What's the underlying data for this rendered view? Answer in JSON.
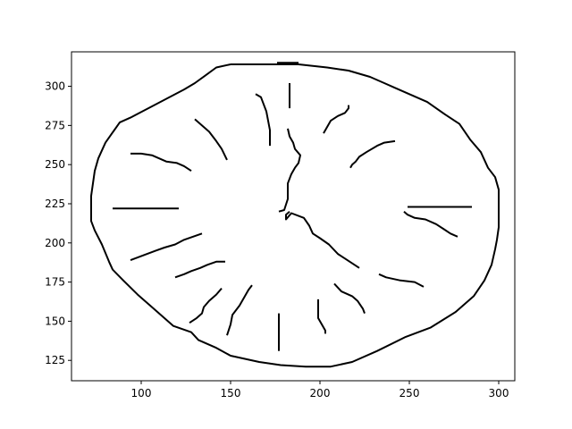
{
  "chart_data": {
    "type": "line",
    "title": "",
    "xlabel": "",
    "ylabel": "",
    "xlim": [
      61,
      309
    ],
    "ylim": [
      112,
      322
    ],
    "grid": false,
    "legend": "none",
    "line_color": "#000000",
    "x_ticks": [
      100,
      150,
      200,
      250,
      300
    ],
    "y_ticks": [
      125,
      150,
      175,
      200,
      225,
      250,
      275,
      300
    ],
    "strokes": [
      {
        "name": "clock-outline",
        "points": [
          [
            150,
            314
          ],
          [
            142,
            312
          ],
          [
            136,
            307
          ],
          [
            130,
            302
          ],
          [
            124,
            298
          ],
          [
            114,
            292
          ],
          [
            104,
            286
          ],
          [
            94,
            280
          ],
          [
            88,
            277
          ],
          [
            80,
            264
          ],
          [
            76,
            254
          ],
          [
            74,
            246
          ],
          [
            73,
            238
          ],
          [
            72,
            230
          ],
          [
            72,
            222
          ],
          [
            72,
            214
          ],
          [
            74,
            208
          ],
          [
            78,
            199
          ],
          [
            82,
            188
          ],
          [
            84,
            183
          ],
          [
            90,
            176
          ],
          [
            98,
            167
          ],
          [
            106,
            159
          ],
          [
            118,
            147
          ],
          [
            128,
            143
          ],
          [
            132,
            138
          ],
          [
            142,
            133
          ],
          [
            150,
            128
          ],
          [
            166,
            124
          ],
          [
            178,
            122
          ],
          [
            192,
            121
          ],
          [
            198,
            121
          ],
          [
            206,
            121
          ],
          [
            218,
            124
          ],
          [
            232,
            131
          ],
          [
            248,
            140
          ],
          [
            262,
            146
          ],
          [
            276,
            156
          ],
          [
            286,
            166
          ],
          [
            292,
            176
          ],
          [
            296,
            186
          ],
          [
            298,
            196
          ],
          [
            299,
            202
          ],
          [
            300,
            210
          ],
          [
            300,
            220
          ],
          [
            300,
            234
          ],
          [
            298,
            242
          ],
          [
            294,
            248
          ],
          [
            290,
            258
          ],
          [
            284,
            266
          ],
          [
            278,
            276
          ],
          [
            270,
            282
          ],
          [
            260,
            290
          ],
          [
            252,
            294
          ],
          [
            242,
            299
          ],
          [
            236,
            302
          ],
          [
            228,
            306
          ],
          [
            216,
            310
          ],
          [
            204,
            312
          ],
          [
            188,
            314
          ],
          [
            172,
            314
          ],
          [
            160,
            314
          ],
          [
            150,
            314
          ]
        ]
      },
      {
        "name": "outline-top-bar",
        "points": [
          [
            176,
            315
          ],
          [
            188,
            315
          ]
        ]
      },
      {
        "name": "hour-12",
        "points": [
          [
            183,
            302
          ],
          [
            183,
            286
          ]
        ]
      },
      {
        "name": "hour-1",
        "points": [
          [
            216,
            288
          ],
          [
            216,
            286
          ],
          [
            214,
            283
          ],
          [
            210,
            281
          ],
          [
            206,
            278
          ],
          [
            204,
            274
          ],
          [
            202,
            270
          ]
        ]
      },
      {
        "name": "hour-2",
        "points": [
          [
            242,
            265
          ],
          [
            236,
            264
          ],
          [
            232,
            262
          ],
          [
            226,
            258
          ],
          [
            222,
            255
          ],
          [
            220,
            252
          ],
          [
            218,
            250
          ],
          [
            217,
            248
          ]
        ]
      },
      {
        "name": "hour-3",
        "points": [
          [
            249,
            223
          ],
          [
            263,
            223
          ],
          [
            275,
            223
          ],
          [
            285,
            223
          ]
        ]
      },
      {
        "name": "hour-4",
        "points": [
          [
            247,
            220
          ],
          [
            249,
            218
          ],
          [
            253,
            216
          ],
          [
            259,
            215
          ],
          [
            265,
            212
          ],
          [
            269,
            209
          ],
          [
            273,
            206
          ],
          [
            277,
            204
          ]
        ]
      },
      {
        "name": "hour-5",
        "points": [
          [
            233,
            180
          ],
          [
            237,
            178
          ],
          [
            245,
            176
          ],
          [
            253,
            175
          ],
          [
            258,
            172
          ]
        ]
      },
      {
        "name": "hour-6",
        "points": [
          [
            208,
            174
          ],
          [
            212,
            169
          ],
          [
            218,
            166
          ],
          [
            221,
            163
          ],
          [
            224,
            158
          ],
          [
            225,
            155
          ]
        ]
      },
      {
        "name": "hour-7",
        "points": [
          [
            199,
            164
          ],
          [
            199,
            152
          ],
          [
            201,
            148
          ],
          [
            203,
            144
          ],
          [
            203,
            142
          ]
        ]
      },
      {
        "name": "hour-8",
        "points": [
          [
            177,
            155
          ],
          [
            177,
            131
          ]
        ]
      },
      {
        "name": "hour-9",
        "points": [
          [
            162,
            173
          ],
          [
            160,
            170
          ],
          [
            158,
            166
          ],
          [
            155,
            160
          ],
          [
            151,
            154
          ],
          [
            150,
            148
          ],
          [
            148,
            141
          ]
        ]
      },
      {
        "name": "hour-10",
        "points": [
          [
            145,
            171
          ],
          [
            142,
            167
          ],
          [
            138,
            163
          ],
          [
            135,
            159
          ],
          [
            134,
            155
          ],
          [
            131,
            152
          ],
          [
            127,
            149
          ]
        ]
      },
      {
        "name": "hour-11",
        "points": [
          [
            147,
            188
          ],
          [
            142,
            188
          ],
          [
            137,
            186
          ],
          [
            133,
            184
          ],
          [
            128,
            182
          ],
          [
            124,
            180
          ],
          [
            119,
            178
          ]
        ]
      },
      {
        "name": "hour-12b",
        "points": [
          [
            134,
            206
          ],
          [
            129,
            204
          ],
          [
            124,
            202
          ],
          [
            119,
            199
          ],
          [
            113,
            197
          ],
          [
            108,
            195
          ],
          [
            101,
            192
          ],
          [
            94,
            189
          ]
        ]
      },
      {
        "name": "hour-9b",
        "points": [
          [
            84,
            222
          ],
          [
            100,
            222
          ],
          [
            121,
            222
          ]
        ]
      },
      {
        "name": "hour-10b",
        "points": [
          [
            94,
            257
          ],
          [
            100,
            257
          ],
          [
            106,
            256
          ],
          [
            110,
            254
          ],
          [
            114,
            252
          ],
          [
            120,
            251
          ],
          [
            124,
            249
          ],
          [
            128,
            246
          ]
        ]
      },
      {
        "name": "hour-11b",
        "points": [
          [
            130,
            279
          ],
          [
            134,
            275
          ],
          [
            138,
            271
          ],
          [
            142,
            265
          ],
          [
            145,
            260
          ],
          [
            148,
            253
          ]
        ]
      },
      {
        "name": "hour-12c",
        "points": [
          [
            164,
            295
          ],
          [
            167,
            293
          ],
          [
            170,
            284
          ],
          [
            172,
            272
          ],
          [
            172,
            262
          ]
        ]
      },
      {
        "name": "minute-hand",
        "points": [
          [
            183,
            220
          ],
          [
            181,
            218
          ],
          [
            181,
            215
          ],
          [
            184,
            219
          ],
          [
            191,
            216
          ],
          [
            194,
            211
          ],
          [
            196,
            206
          ],
          [
            200,
            203
          ],
          [
            205,
            199
          ],
          [
            210,
            193
          ],
          [
            214,
            190
          ],
          [
            218,
            187
          ],
          [
            222,
            184
          ]
        ]
      },
      {
        "name": "hour-hand",
        "points": [
          [
            177,
            220
          ],
          [
            180,
            221
          ],
          [
            182,
            228
          ],
          [
            182,
            238
          ],
          [
            184,
            244
          ],
          [
            186,
            248
          ],
          [
            188,
            251
          ],
          [
            189,
            256
          ],
          [
            186,
            260
          ],
          [
            185,
            264
          ],
          [
            183,
            268
          ],
          [
            182,
            273
          ]
        ]
      }
    ]
  }
}
